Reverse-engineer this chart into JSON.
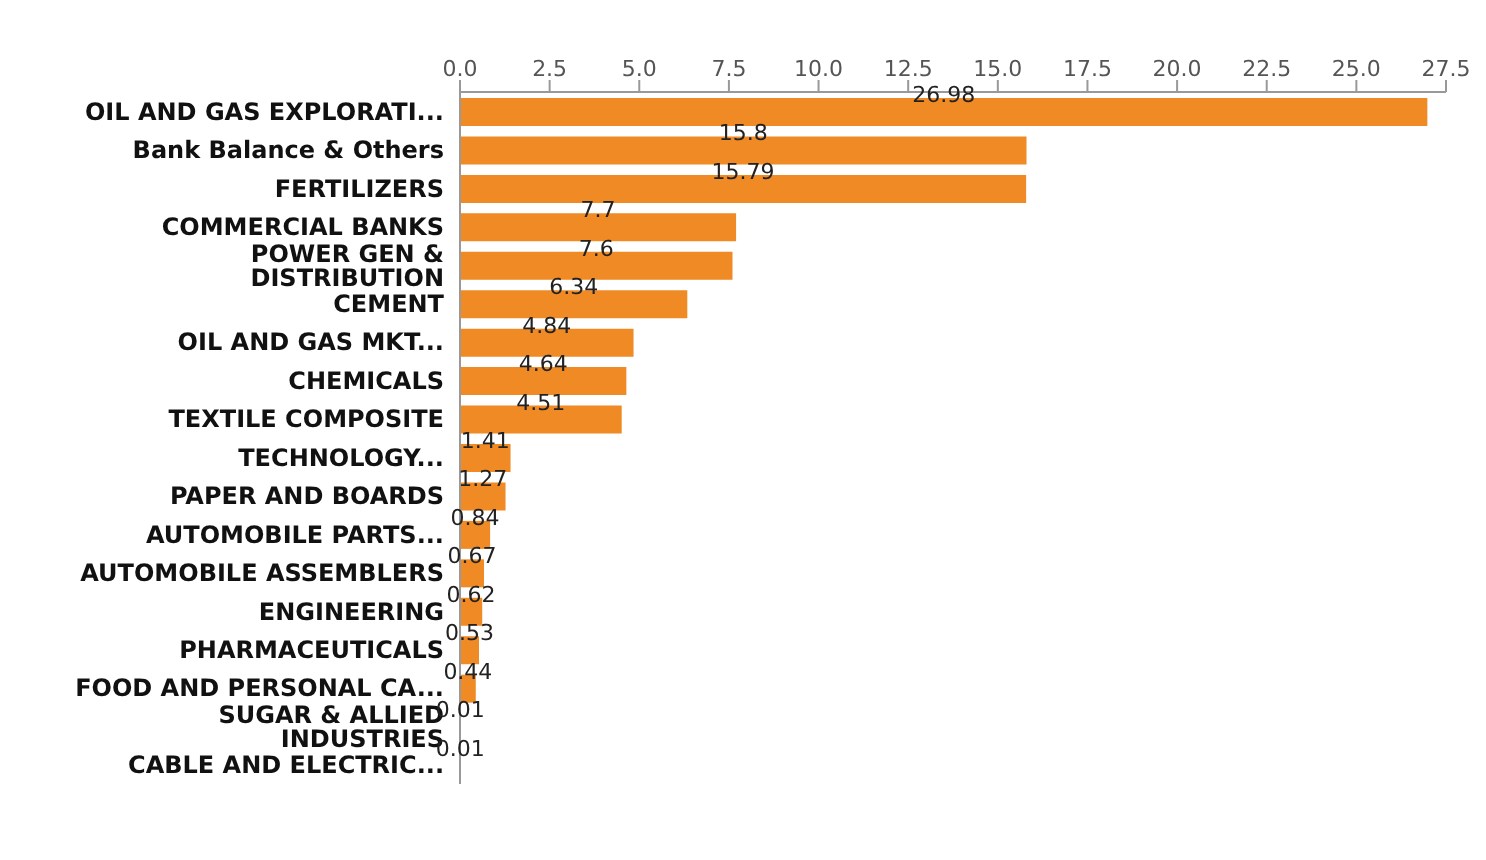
{
  "chart_data": {
    "type": "bar",
    "orientation": "horizontal",
    "color": "#f08a24",
    "categories": [
      "OIL AND GAS EXPLORATI...",
      "Bank Balance & Others",
      "FERTILIZERS",
      "COMMERCIAL BANKS",
      "POWER GEN & DISTRIBUTION",
      "CEMENT",
      "OIL AND GAS MKT...",
      "CHEMICALS",
      "TEXTILE COMPOSITE",
      "TECHNOLOGY...",
      "PAPER AND BOARDS",
      "AUTOMOBILE PARTS...",
      "AUTOMOBILE ASSEMBLERS",
      "ENGINEERING",
      "PHARMACEUTICALS",
      "FOOD AND PERSONAL CA...",
      "SUGAR & ALLIED INDUSTRIES",
      "CABLE AND ELECTRIC..."
    ],
    "values": [
      26.98,
      15.8,
      15.79,
      7.7,
      7.6,
      6.34,
      4.84,
      4.64,
      4.51,
      1.41,
      1.27,
      0.84,
      0.67,
      0.62,
      0.53,
      0.44,
      0.01,
      0.01
    ],
    "xlim": [
      0,
      27.5
    ],
    "xticks": [
      {
        "value": 0,
        "label": "0.0"
      },
      {
        "value": 2.5,
        "label": "2.5"
      },
      {
        "value": 5,
        "label": "5.0"
      },
      {
        "value": 7.5,
        "label": "7.5"
      },
      {
        "value": 10,
        "label": "10.0"
      },
      {
        "value": 12.5,
        "label": "12.5"
      },
      {
        "value": 15,
        "label": "15.0"
      },
      {
        "value": 17.5,
        "label": "17.5"
      },
      {
        "value": 20,
        "label": "20.0"
      },
      {
        "value": 22.5,
        "label": "22.5"
      },
      {
        "value": 25,
        "label": "25.0"
      },
      {
        "value": 27.5,
        "label": "27.5"
      }
    ],
    "data_labels": true,
    "grid": false
  }
}
